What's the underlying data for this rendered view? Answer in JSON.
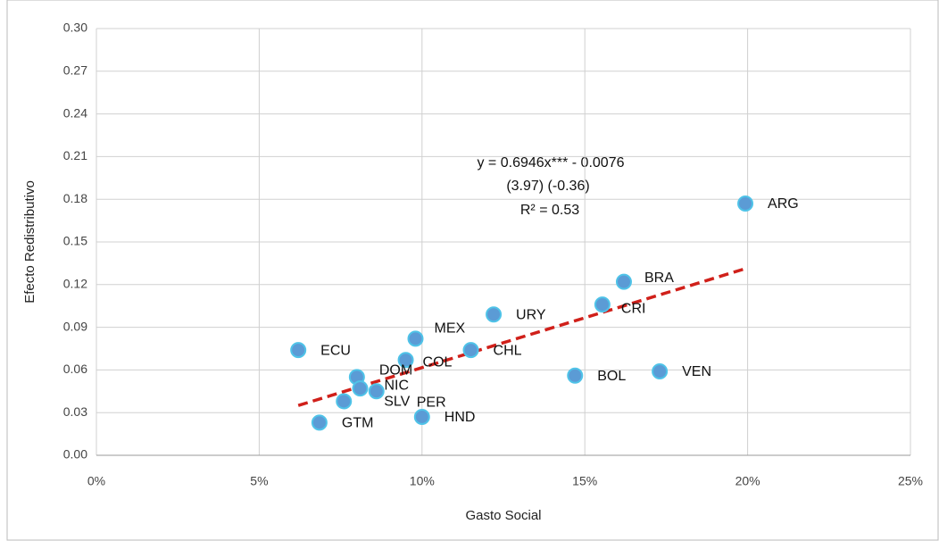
{
  "chart_data": {
    "type": "scatter",
    "x_label": "Gasto Social",
    "y_label": "Efecto Redistributivo",
    "annotation": [
      "y = 0.6946x*** - 0.0076",
      "(3.97)     (-0.36)",
      "R² = 0.53"
    ],
    "points": [
      "ARG",
      "BRA",
      "CRI",
      "URY",
      "CHL",
      "MEX",
      "COL",
      "ECU",
      "DOM",
      "NIC",
      "SLV",
      "PER",
      "GTM",
      "HND",
      "BOL",
      "VEN"
    ],
    "x": [
      19.93,
      16.2,
      15.54,
      12.2,
      11.5,
      9.8,
      9.5,
      6.2,
      8.0,
      8.1,
      7.6,
      8.6,
      6.85,
      10.0,
      14.7,
      17.3
    ],
    "y": [
      0.177,
      0.122,
      0.106,
      0.099,
      0.074,
      0.082,
      0.067,
      0.074,
      0.055,
      0.047,
      0.038,
      0.045,
      0.023,
      0.027,
      0.056,
      0.059
    ],
    "color": "#5b9bd5",
    "edge_color": "#4fc3e8",
    "trendline": {
      "x": [
        6.2,
        19.9
      ],
      "y": [
        0.035,
        0.131
      ],
      "color": "#d0201a"
    },
    "xlim": [
      0,
      25
    ],
    "xticks": [
      {
        "value": 0,
        "label": "0%"
      },
      {
        "value": 5,
        "label": "5%"
      },
      {
        "value": 10,
        "label": "10%"
      },
      {
        "value": 15,
        "label": "15%"
      },
      {
        "value": 20,
        "label": "20%"
      },
      {
        "value": 25,
        "label": "25%"
      }
    ],
    "ylim": [
      0,
      0.3
    ],
    "yticks": [
      {
        "value": 0,
        "label": "0.00"
      },
      {
        "value": 0.03,
        "label": "0.03"
      },
      {
        "value": 0.06,
        "label": "0.06"
      },
      {
        "value": 0.09,
        "label": "0.09"
      },
      {
        "value": 0.12,
        "label": "0.12"
      },
      {
        "value": 0.15,
        "label": "0.15"
      },
      {
        "value": 0.18,
        "label": "0.18"
      },
      {
        "value": 0.21,
        "label": "0.21"
      },
      {
        "value": 0.24,
        "label": "0.24"
      },
      {
        "value": 0.27,
        "label": "0.27"
      },
      {
        "value": 0.3,
        "label": "0.30"
      }
    ],
    "grid": true
  }
}
